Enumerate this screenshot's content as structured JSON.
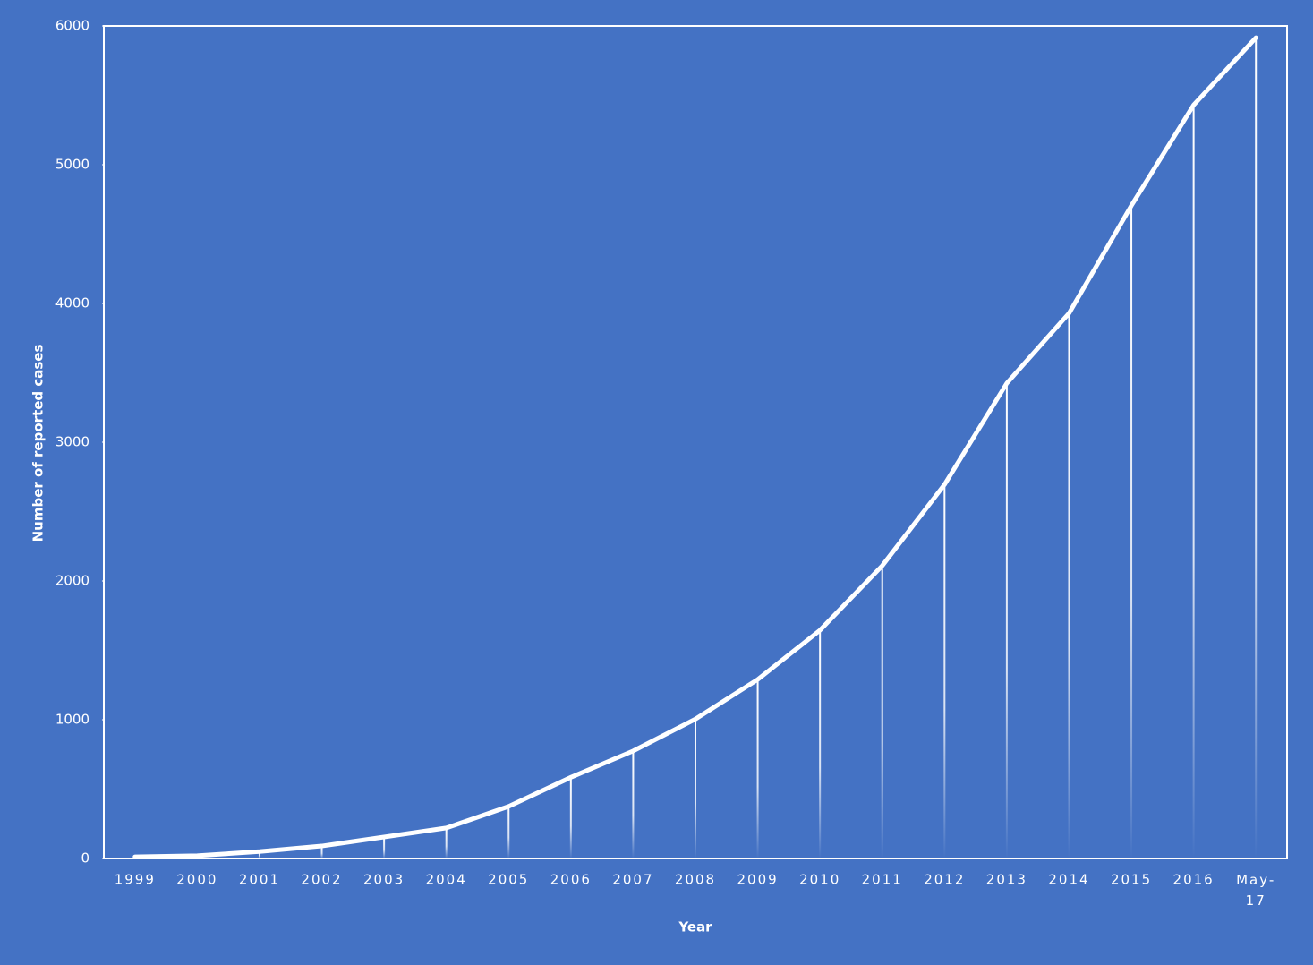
{
  "chart_data": {
    "type": "line",
    "x_label": "Year",
    "y_label": "Number of reported cases",
    "categories": [
      "1999",
      "2000",
      "2001",
      "2002",
      "2003",
      "2004",
      "2005",
      "2006",
      "2007",
      "2008",
      "2009",
      "2010",
      "2011",
      "2012",
      "2013",
      "2014",
      "2015",
      "2016",
      "May-17"
    ],
    "values": [
      12,
      20,
      50,
      90,
      155,
      220,
      375,
      585,
      775,
      1005,
      1290,
      1645,
      2110,
      2695,
      3425,
      3930,
      4705,
      5430,
      5915
    ],
    "color": "#ffffff",
    "drop_lines": true,
    "ylim": [
      0,
      6000
    ],
    "yticks": [
      0,
      1000,
      2000,
      3000,
      4000,
      5000,
      6000
    ]
  }
}
